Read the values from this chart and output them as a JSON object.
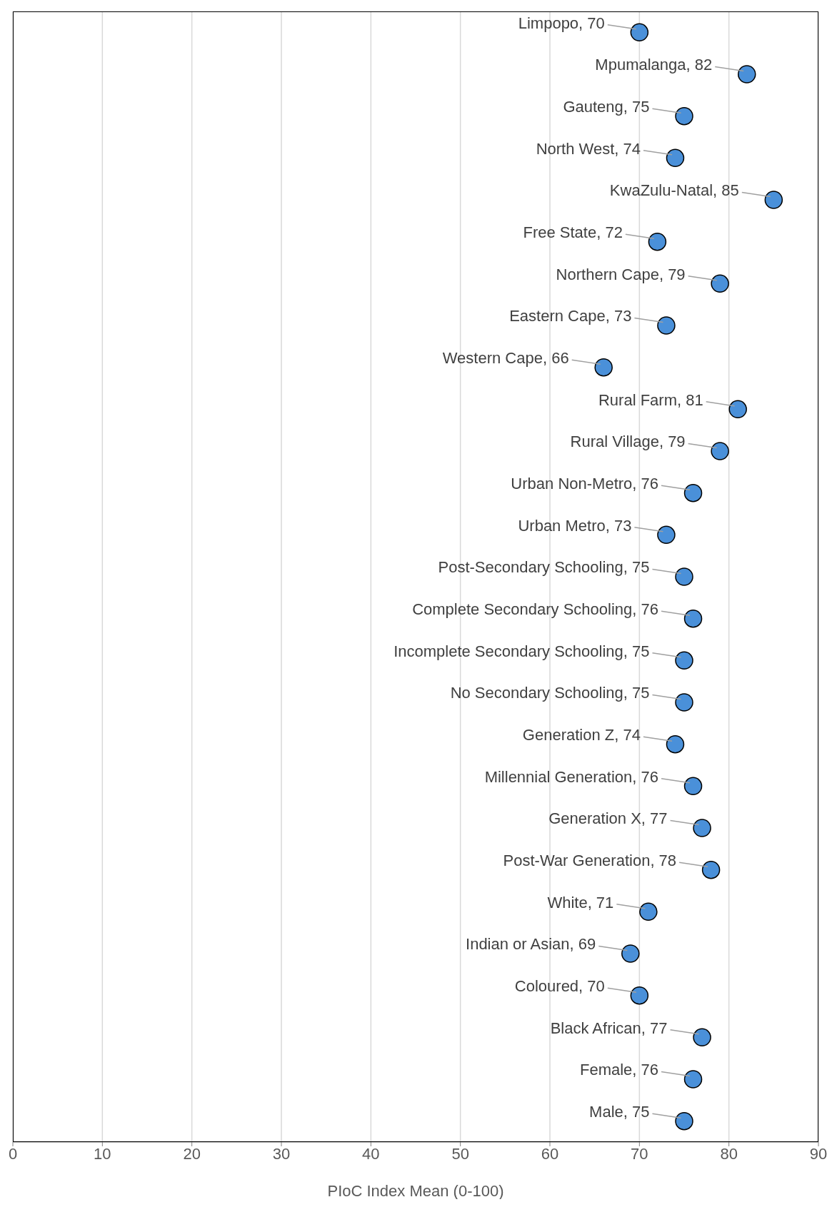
{
  "chart_data": {
    "type": "scatter",
    "xlabel": "PIoC Index Mean (0-100)",
    "categories": [
      "Limpopo, 70",
      "Mpumalanga, 82",
      "Gauteng, 75",
      "North West, 74",
      "KwaZulu-Natal, 85",
      "Free State, 72",
      "Northern Cape, 79",
      "Eastern Cape, 73",
      "Western Cape, 66",
      "Rural Farm, 81",
      "Rural Village, 79",
      "Urban Non-Metro, 76",
      "Urban Metro, 73",
      "Post-Secondary Schooling, 75",
      "Complete Secondary Schooling, 76",
      "Incomplete Secondary Schooling, 75",
      "No Secondary Schooling, 75",
      "Generation Z, 74",
      "Millennial Generation, 76",
      "Generation X, 77",
      "Post-War Generation, 78",
      "White, 71",
      "Indian or Asian, 69",
      "Coloured, 70",
      "Black African, 77",
      "Female, 76",
      "Male, 75"
    ],
    "values": [
      70,
      82,
      75,
      74,
      85,
      72,
      79,
      73,
      66,
      81,
      79,
      76,
      73,
      75,
      76,
      75,
      75,
      74,
      76,
      77,
      78,
      71,
      69,
      70,
      77,
      76,
      75
    ],
    "color": "#4a90d9",
    "marker": "circle",
    "orientation": "horizontal",
    "xlim": [
      0,
      90
    ],
    "xticks": [
      0,
      10,
      20,
      30,
      40,
      50,
      60,
      70,
      80,
      90
    ],
    "grid": "x",
    "tick_labels": "x",
    "legend": false
  }
}
